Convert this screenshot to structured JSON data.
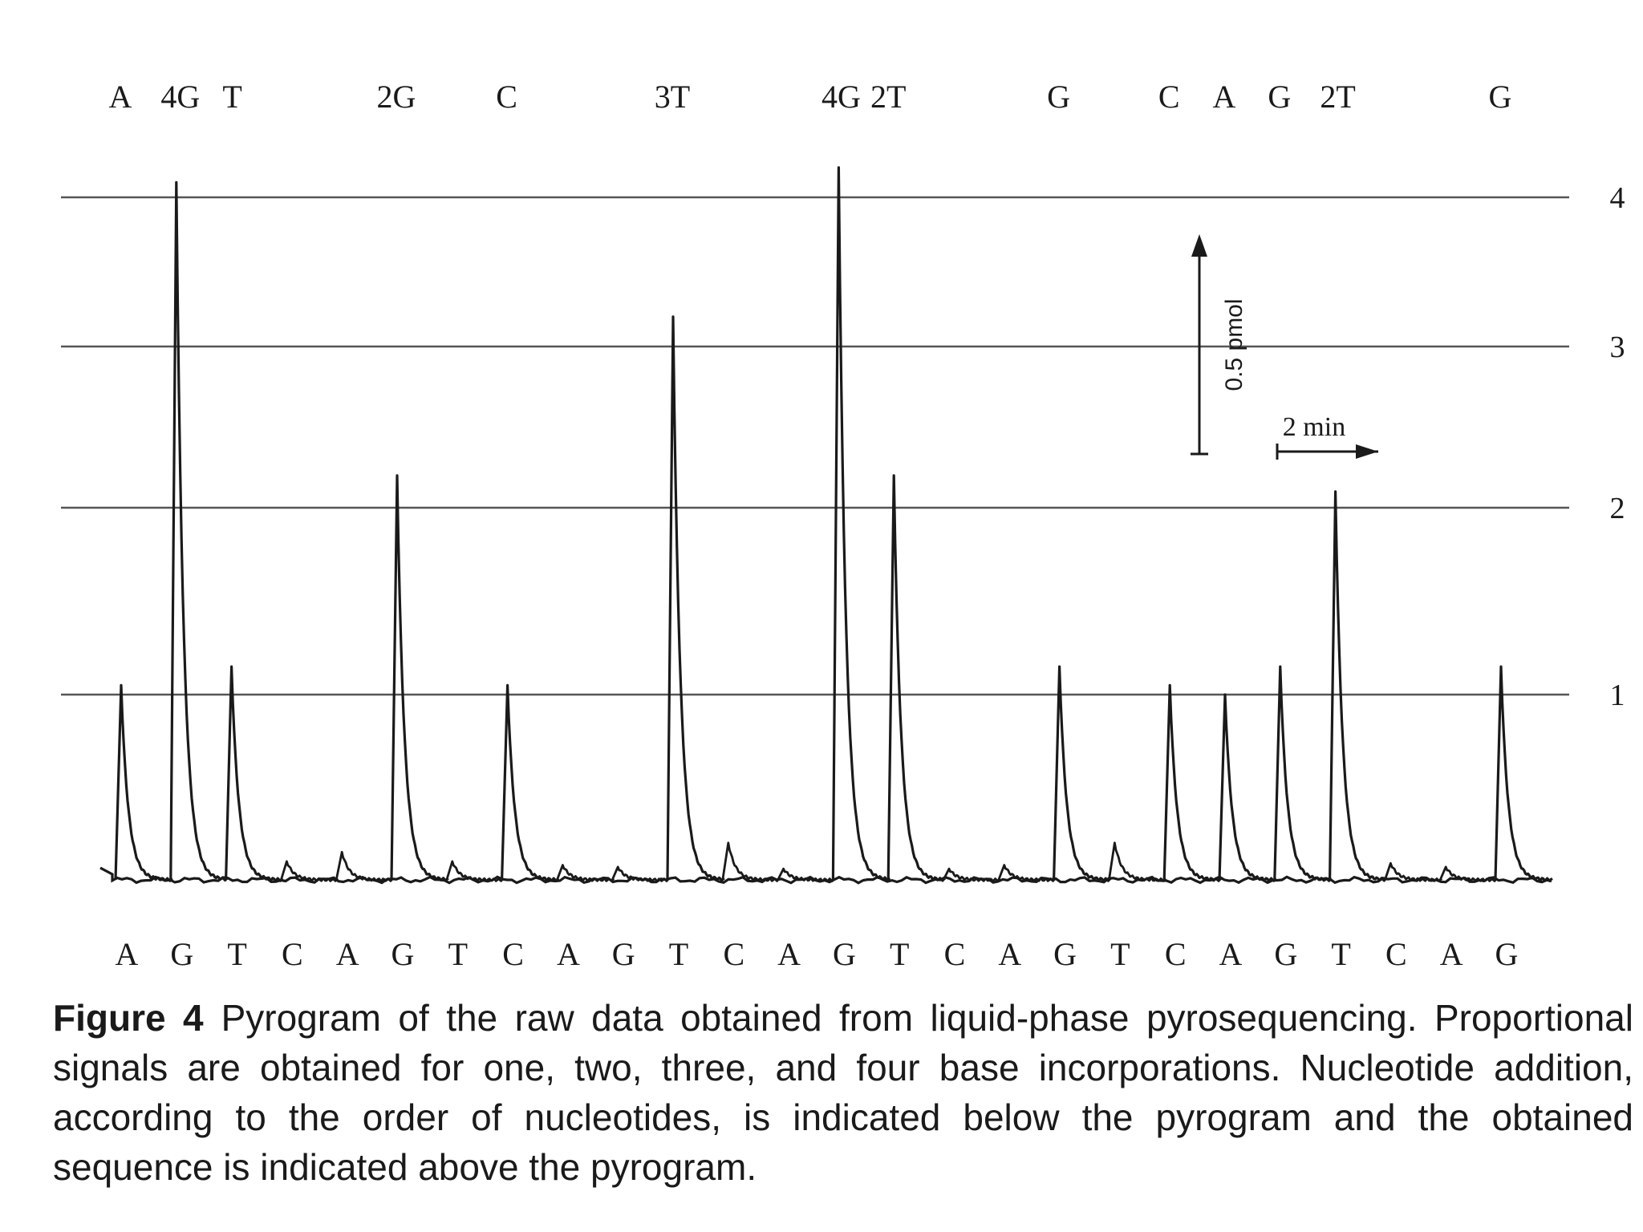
{
  "chart_data": {
    "type": "line",
    "title": "",
    "xlabel": "",
    "ylabel": "",
    "ylim": [
      0,
      4.3
    ],
    "yticks": [
      1,
      2,
      3,
      4
    ],
    "grid": "horizontal lines at 1, 2, 3, 4",
    "dispensation_order": [
      "A",
      "G",
      "T",
      "C",
      "A",
      "G",
      "T",
      "C",
      "A",
      "G",
      "T",
      "C",
      "A",
      "G",
      "T",
      "C",
      "A",
      "G",
      "T",
      "C",
      "A",
      "G",
      "T",
      "C",
      "A",
      "G"
    ],
    "peak_heights": [
      1.05,
      4.1,
      1.15,
      0.1,
      0.15,
      2.2,
      0.1,
      1.05,
      0.08,
      0.07,
      3.2,
      0.2,
      0.06,
      4.2,
      2.2,
      0.06,
      0.08,
      1.15,
      0.2,
      1.05,
      1.0,
      1.15,
      2.1,
      0.09,
      0.07,
      1.15
    ],
    "sequence_labels": [
      {
        "label": "A",
        "peak": 0
      },
      {
        "label": "4G",
        "peak": 1
      },
      {
        "label": "T",
        "peak": 2
      },
      {
        "label": "2G",
        "peak": 5
      },
      {
        "label": "C",
        "peak": 7
      },
      {
        "label": "3T",
        "peak": 10
      },
      {
        "label": "4G",
        "peak": 13
      },
      {
        "label": "2T",
        "peak": 14
      },
      {
        "label": "G",
        "peak": 17
      },
      {
        "label": "C",
        "peak": 19
      },
      {
        "label": "A",
        "peak": 20
      },
      {
        "label": "G",
        "peak": 21
      },
      {
        "label": "2T",
        "peak": 22
      },
      {
        "label": "G",
        "peak": 25
      }
    ],
    "scale_bars": {
      "vertical": "0.5 pmol",
      "horizontal": "2 min"
    }
  },
  "caption": {
    "label": "Figure 4",
    "text": "Pyrogram of the raw data obtained from liquid-phase pyrosequencing. Proportional signals are obtained for one, two, three, and four base incorporations. Nucleotide addition, according to the order of nucleotides, is indicated below the pyrogram and the obtained sequence is indicated above the pyrogram."
  }
}
